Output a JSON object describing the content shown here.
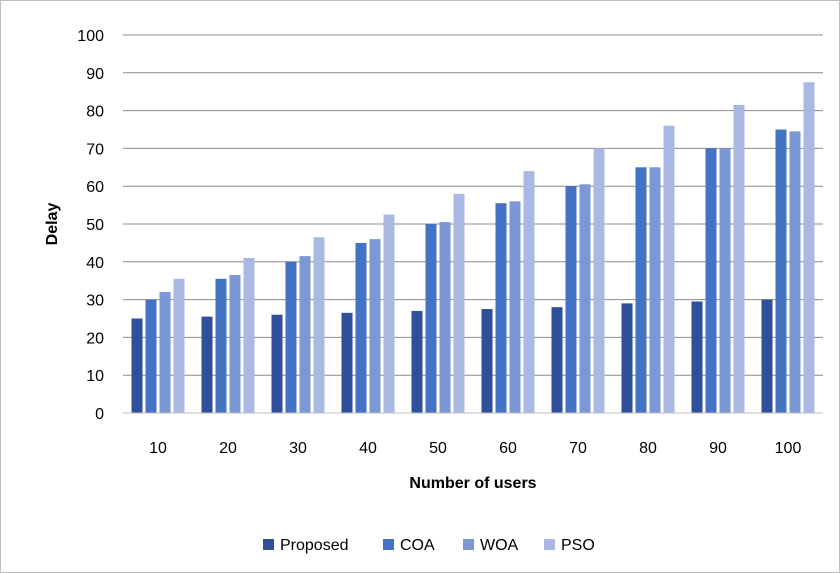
{
  "chart_data": {
    "type": "bar",
    "title": "",
    "xlabel": "Number of users",
    "ylabel": "Delay",
    "categories": [
      "10",
      "20",
      "30",
      "40",
      "50",
      "60",
      "70",
      "80",
      "90",
      "100"
    ],
    "ylim": [
      0,
      100
    ],
    "yticks": [
      0,
      10,
      20,
      30,
      40,
      50,
      60,
      70,
      80,
      90,
      100
    ],
    "grid": true,
    "legend_position": "bottom",
    "series": [
      {
        "name": "Proposed",
        "color": "#2e4f9a",
        "values": [
          25,
          25.5,
          26,
          26.5,
          27,
          27.5,
          28,
          29,
          29.5,
          30
        ]
      },
      {
        "name": "COA",
        "color": "#4472c4",
        "values": [
          30,
          35.5,
          40,
          45,
          50,
          55.5,
          60,
          65,
          70,
          75
        ]
      },
      {
        "name": "WOA",
        "color": "#7b97d6",
        "values": [
          32,
          36.5,
          41.5,
          46,
          50.5,
          56,
          60.5,
          65,
          70,
          74.5
        ]
      },
      {
        "name": "PSO",
        "color": "#a9b9e3",
        "values": [
          35.5,
          41,
          46.5,
          52.5,
          58,
          64,
          70,
          76,
          81.5,
          87.5
        ]
      }
    ]
  }
}
